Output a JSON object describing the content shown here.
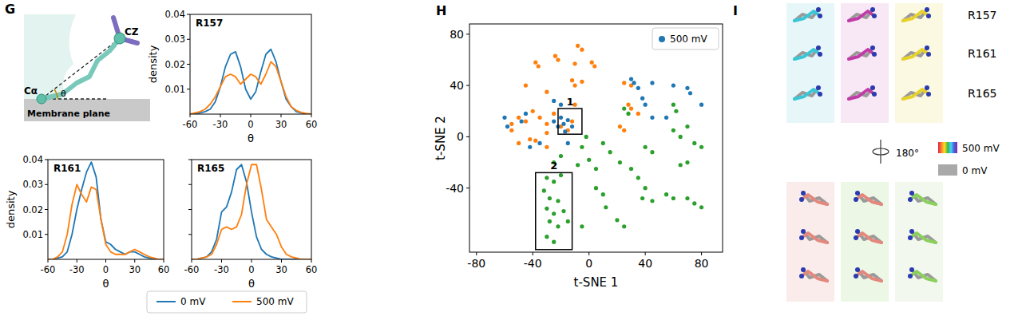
{
  "panels": [
    "G",
    "H",
    "I"
  ],
  "schematic": {
    "labels": [
      "CZ",
      "Cα",
      "θ"
    ],
    "plane": "Membrane plane"
  },
  "chart_data": [
    {
      "type": "line",
      "title": "R157",
      "x": [
        -60,
        -55,
        -50,
        -45,
        -40,
        -35,
        -30,
        -25,
        -20,
        -15,
        -10,
        -5,
        0,
        5,
        10,
        15,
        20,
        25,
        30,
        35,
        40,
        45,
        50,
        55,
        60
      ],
      "series": [
        {
          "color": "#1f77b4",
          "values": [
            0,
            0,
            0.0005,
            0.001,
            0.002,
            0.005,
            0.011,
            0.019,
            0.024,
            0.025,
            0.019,
            0.01,
            0.006,
            0.009,
            0.017,
            0.024,
            0.026,
            0.021,
            0.013,
            0.006,
            0.003,
            0.001,
            0.0005,
            0,
            0
          ]
        },
        {
          "color": "#ff7f0e",
          "values": [
            0,
            0.0005,
            0.001,
            0.002,
            0.004,
            0.007,
            0.011,
            0.015,
            0.016,
            0.015,
            0.012,
            0.014,
            0.016,
            0.015,
            0.012,
            0.016,
            0.021,
            0.019,
            0.013,
            0.007,
            0.003,
            0.0015,
            0.0007,
            0.0003,
            0
          ]
        }
      ],
      "xlim": [
        -60,
        60
      ],
      "ylim": [
        0,
        0.04
      ],
      "xticks": [
        -60,
        -30,
        0,
        30,
        60
      ],
      "yticks": [
        0.01,
        0.02,
        0.03,
        0.04
      ],
      "x_label": "θ",
      "y_label": "density"
    },
    {
      "type": "line",
      "title": "R161",
      "x": [
        -60,
        -55,
        -50,
        -45,
        -40,
        -35,
        -30,
        -25,
        -20,
        -15,
        -10,
        -5,
        0,
        5,
        10,
        15,
        20,
        25,
        30,
        35,
        40,
        45,
        50,
        55,
        60
      ],
      "series": [
        {
          "name": "0 mV",
          "color": "#1f77b4",
          "values": [
            0,
            0,
            0.0005,
            0.001,
            0.003,
            0.01,
            0.02,
            0.028,
            0.035,
            0.039,
            0.033,
            0.016,
            0.007,
            0.006,
            0.004,
            0.003,
            0.002,
            0.003,
            0.003,
            0.002,
            0.001,
            0.0005,
            0,
            0,
            0
          ]
        },
        {
          "name": "500 mV",
          "color": "#ff7f0e",
          "values": [
            0,
            0,
            0.001,
            0.003,
            0.01,
            0.022,
            0.03,
            0.026,
            0.023,
            0.029,
            0.028,
            0.016,
            0.006,
            0.003,
            0.002,
            0.002,
            0.002,
            0.003,
            0.004,
            0.003,
            0.002,
            0.001,
            0.0005,
            0,
            0
          ]
        }
      ],
      "xlim": [
        -60,
        60
      ],
      "ylim": [
        0,
        0.04
      ],
      "xticks": [
        -60,
        -30,
        0,
        30,
        60
      ],
      "yticks": [
        0.01,
        0.02,
        0.03,
        0.04
      ],
      "x_label": "θ",
      "y_label": "density",
      "legend": "bottom"
    },
    {
      "type": "line",
      "title": "R165",
      "x": [
        -60,
        -55,
        -50,
        -45,
        -40,
        -35,
        -30,
        -25,
        -20,
        -15,
        -10,
        -5,
        0,
        5,
        10,
        15,
        20,
        25,
        30,
        35,
        40,
        45,
        50,
        55,
        60
      ],
      "series": [
        {
          "color": "#1f77b4",
          "values": [
            0,
            0,
            0.0005,
            0.001,
            0.003,
            0.008,
            0.019,
            0.021,
            0.027,
            0.036,
            0.038,
            0.031,
            0.019,
            0.009,
            0.004,
            0.002,
            0.001,
            0.0005,
            0,
            0,
            0,
            0,
            0,
            0,
            0
          ]
        },
        {
          "color": "#ff7f0e",
          "values": [
            0,
            0,
            0.0005,
            0.001,
            0.002,
            0.006,
            0.012,
            0.013,
            0.012,
            0.013,
            0.018,
            0.03,
            0.038,
            0.038,
            0.028,
            0.016,
            0.013,
            0.01,
            0.005,
            0.002,
            0.001,
            0.0005,
            0,
            0,
            0
          ]
        }
      ],
      "xlim": [
        -60,
        60
      ],
      "ylim": [
        0,
        0.04
      ],
      "xticks": [
        -60,
        -30,
        0,
        30,
        60
      ],
      "yticks": [
        0.01,
        0.02,
        0.03,
        0.04
      ],
      "x_label": "θ",
      "tick_labels": "x"
    },
    {
      "type": "scatter",
      "series": [
        {
          "color": "#2ca02c",
          "x": [
            -30,
            -25,
            -20,
            -32,
            -28,
            -22,
            -30,
            -25,
            -18,
            -28,
            -22,
            -30,
            -25,
            -15,
            -5,
            -8,
            0,
            5,
            5,
            10,
            12,
            15,
            22,
            30,
            35,
            40,
            38,
            45,
            55,
            60,
            70,
            75,
            80,
            40,
            45,
            60,
            65,
            70,
            75,
            80,
            65,
            70,
            25,
            28,
            60,
            62,
            -2,
            -5,
            10,
            20,
            25,
            -20,
            -25
          ],
          "values": [
            -32,
            -35,
            -30,
            -42,
            -48,
            -50,
            -56,
            -60,
            -58,
            -66,
            -70,
            -78,
            -82,
            -66,
            -70,
            -22,
            -18,
            -25,
            -40,
            -45,
            -55,
            -12,
            -20,
            -25,
            -32,
            -40,
            -48,
            -50,
            -45,
            -48,
            -48,
            -52,
            -55,
            -8,
            -12,
            5,
            0,
            8,
            -5,
            -8,
            -22,
            -20,
            22,
            18,
            25,
            20,
            0,
            -8,
            -5,
            -65,
            -70,
            -15,
            -20
          ]
        },
        {
          "color": "#ff7f0e",
          "x": [
            -38,
            -36,
            -24,
            -22,
            -8,
            -5,
            -10,
            2,
            4,
            -12,
            -5,
            -10,
            25,
            30,
            28,
            30,
            22,
            25,
            35,
            -55,
            -55,
            -50,
            -45,
            -40,
            -35,
            -30,
            -30,
            -25,
            -20,
            -15,
            -12,
            -42,
            -38,
            -50,
            -30,
            -10,
            -30,
            -45
          ],
          "values": [
            58,
            55,
            63,
            60,
            71,
            68,
            57,
            58,
            55,
            44,
            43,
            40,
            42,
            40,
            25,
            22,
            8,
            5,
            18,
            10,
            5,
            15,
            12,
            20,
            15,
            10,
            3,
            18,
            8,
            5,
            12,
            -2,
            -3,
            -5,
            -8,
            25,
            35,
            40
          ]
        },
        {
          "name": "500 mV",
          "color": "#1f77b4",
          "x": [
            -20,
            -18,
            -15,
            -12,
            -22,
            -17,
            -25,
            -45,
            -48,
            -60,
            -58,
            30,
            32,
            35,
            38,
            40,
            45,
            55,
            70,
            72,
            80,
            60,
            -25,
            -20,
            -35,
            -42,
            -15,
            45
          ],
          "values": [
            15,
            10,
            13,
            8,
            8,
            4,
            12,
            18,
            12,
            15,
            8,
            45,
            42,
            38,
            30,
            25,
            15,
            15,
            38,
            34,
            25,
            40,
            28,
            25,
            -5,
            -8,
            -5,
            42
          ]
        }
      ],
      "xlim": [
        -85,
        95
      ],
      "ylim": [
        -90,
        88
      ],
      "xticks": [
        -80,
        -40,
        0,
        40,
        80
      ],
      "yticks": [
        -40,
        0,
        40,
        80
      ],
      "x_label": "t-SNE 1",
      "y_label": "t-SNE 2",
      "legend": "upper right",
      "annotations": [
        {
          "label": "1",
          "x": [
            -22,
            -5
          ],
          "y": [
            2,
            22
          ]
        },
        {
          "label": "2",
          "x": [
            -38,
            -12
          ],
          "y": [
            -88,
            -28
          ]
        }
      ]
    }
  ],
  "structure": {
    "residues": [
      "R157",
      "R161",
      "R165"
    ],
    "rotation": "180°",
    "color_key": [
      {
        "label": "500 mV",
        "color": "rainbow"
      },
      {
        "label": "0 mV",
        "color": "#a9a9a9"
      }
    ]
  }
}
